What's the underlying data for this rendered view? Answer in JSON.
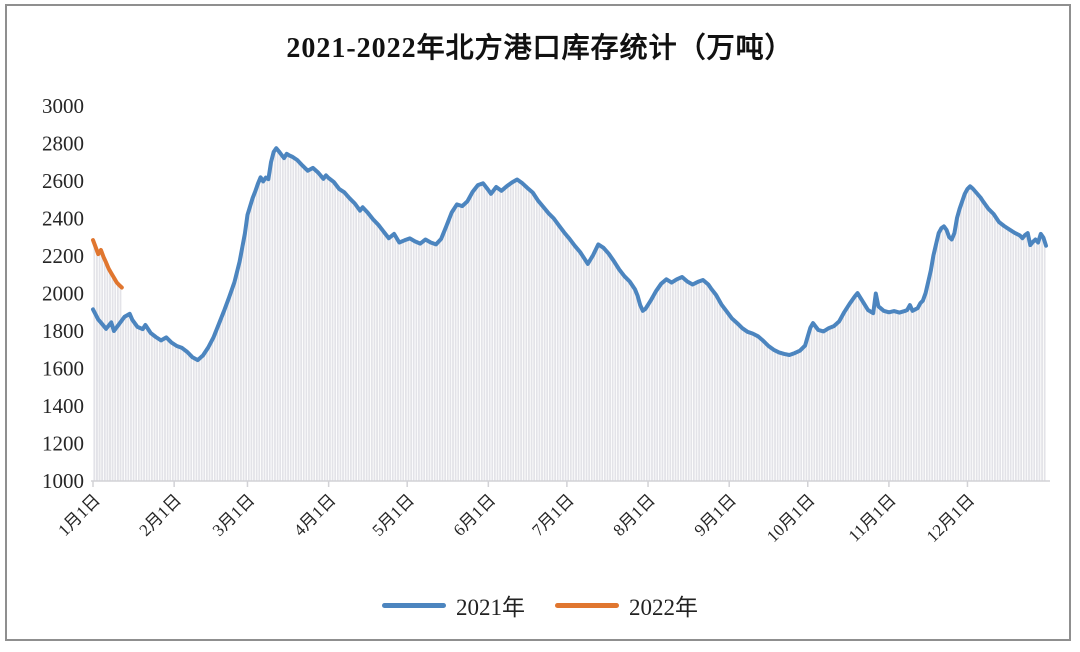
{
  "chart_data": {
    "type": "line",
    "title": "2021-2022年北方港口库存统计（万吨）",
    "units": "万吨",
    "xlabel": "",
    "ylabel": "",
    "ylim": [
      1000,
      3000
    ],
    "grid": false,
    "drop_lines": true,
    "legend_position": "bottom",
    "y_ticks": [
      3000,
      2800,
      2600,
      2400,
      2200,
      2000,
      1800,
      1600,
      1400,
      1200,
      1000
    ],
    "x_ticks": [
      {
        "day": 1,
        "label": "1月1日"
      },
      {
        "day": 32,
        "label": "2月1日"
      },
      {
        "day": 60,
        "label": "3月1日"
      },
      {
        "day": 91,
        "label": "4月1日"
      },
      {
        "day": 121,
        "label": "5月1日"
      },
      {
        "day": 152,
        "label": "6月1日"
      },
      {
        "day": 182,
        "label": "7月1日"
      },
      {
        "day": 213,
        "label": "8月1日"
      },
      {
        "day": 244,
        "label": "9月1日"
      },
      {
        "day": 274,
        "label": "10月1日"
      },
      {
        "day": 305,
        "label": "11月1日"
      },
      {
        "day": 335,
        "label": "12月1日"
      }
    ],
    "legend": [
      {
        "label": "2021年",
        "color": "#4c85bf"
      },
      {
        "label": "2022年",
        "color": "#e0762f"
      }
    ],
    "series": [
      {
        "name": "2021年",
        "color": "#4c85bf",
        "points": [
          [
            1,
            1915
          ],
          [
            3,
            1862
          ],
          [
            4,
            1845
          ],
          [
            6,
            1812
          ],
          [
            8,
            1846
          ],
          [
            9,
            1800
          ],
          [
            11,
            1838
          ],
          [
            13,
            1875
          ],
          [
            15,
            1892
          ],
          [
            16,
            1860
          ],
          [
            18,
            1822
          ],
          [
            20,
            1810
          ],
          [
            21,
            1832
          ],
          [
            23,
            1790
          ],
          [
            25,
            1768
          ],
          [
            27,
            1750
          ],
          [
            29,
            1766
          ],
          [
            31,
            1738
          ],
          [
            33,
            1720
          ],
          [
            35,
            1710
          ],
          [
            37,
            1688
          ],
          [
            39,
            1660
          ],
          [
            41,
            1645
          ],
          [
            43,
            1670
          ],
          [
            45,
            1712
          ],
          [
            47,
            1765
          ],
          [
            49,
            1835
          ],
          [
            51,
            1905
          ],
          [
            53,
            1980
          ],
          [
            55,
            2060
          ],
          [
            57,
            2170
          ],
          [
            59,
            2320
          ],
          [
            60,
            2420
          ],
          [
            61,
            2465
          ],
          [
            62,
            2510
          ],
          [
            63,
            2545
          ],
          [
            64,
            2585
          ],
          [
            65,
            2620
          ],
          [
            66,
            2598
          ],
          [
            67,
            2618
          ],
          [
            68,
            2610
          ],
          [
            69,
            2700
          ],
          [
            70,
            2755
          ],
          [
            71,
            2775
          ],
          [
            72,
            2758
          ],
          [
            73,
            2740
          ],
          [
            74,
            2722
          ],
          [
            75,
            2745
          ],
          [
            76,
            2736
          ],
          [
            77,
            2730
          ],
          [
            79,
            2712
          ],
          [
            81,
            2682
          ],
          [
            83,
            2655
          ],
          [
            85,
            2670
          ],
          [
            87,
            2645
          ],
          [
            89,
            2612
          ],
          [
            90,
            2630
          ],
          [
            91,
            2616
          ],
          [
            93,
            2594
          ],
          [
            95,
            2558
          ],
          [
            97,
            2540
          ],
          [
            99,
            2508
          ],
          [
            101,
            2480
          ],
          [
            103,
            2442
          ],
          [
            104,
            2460
          ],
          [
            106,
            2430
          ],
          [
            108,
            2395
          ],
          [
            110,
            2366
          ],
          [
            112,
            2330
          ],
          [
            114,
            2295
          ],
          [
            116,
            2318
          ],
          [
            118,
            2272
          ],
          [
            120,
            2284
          ],
          [
            122,
            2294
          ],
          [
            124,
            2278
          ],
          [
            126,
            2266
          ],
          [
            128,
            2288
          ],
          [
            130,
            2272
          ],
          [
            132,
            2262
          ],
          [
            134,
            2292
          ],
          [
            136,
            2360
          ],
          [
            138,
            2432
          ],
          [
            140,
            2475
          ],
          [
            142,
            2466
          ],
          [
            144,
            2492
          ],
          [
            146,
            2542
          ],
          [
            148,
            2578
          ],
          [
            150,
            2588
          ],
          [
            152,
            2552
          ],
          [
            153,
            2532
          ],
          [
            155,
            2568
          ],
          [
            157,
            2548
          ],
          [
            159,
            2572
          ],
          [
            161,
            2592
          ],
          [
            163,
            2608
          ],
          [
            165,
            2588
          ],
          [
            167,
            2562
          ],
          [
            169,
            2538
          ],
          [
            171,
            2495
          ],
          [
            173,
            2462
          ],
          [
            175,
            2428
          ],
          [
            177,
            2400
          ],
          [
            179,
            2362
          ],
          [
            181,
            2325
          ],
          [
            183,
            2292
          ],
          [
            185,
            2255
          ],
          [
            187,
            2222
          ],
          [
            189,
            2180
          ],
          [
            190,
            2158
          ],
          [
            192,
            2205
          ],
          [
            194,
            2262
          ],
          [
            196,
            2244
          ],
          [
            198,
            2212
          ],
          [
            200,
            2172
          ],
          [
            202,
            2128
          ],
          [
            204,
            2092
          ],
          [
            206,
            2064
          ],
          [
            208,
            2022
          ],
          [
            209,
            1988
          ],
          [
            210,
            1938
          ],
          [
            211,
            1908
          ],
          [
            212,
            1918
          ],
          [
            214,
            1962
          ],
          [
            216,
            2012
          ],
          [
            218,
            2052
          ],
          [
            220,
            2076
          ],
          [
            222,
            2058
          ],
          [
            224,
            2076
          ],
          [
            226,
            2088
          ],
          [
            228,
            2064
          ],
          [
            230,
            2048
          ],
          [
            232,
            2062
          ],
          [
            234,
            2072
          ],
          [
            236,
            2048
          ],
          [
            237,
            2028
          ],
          [
            239,
            1992
          ],
          [
            241,
            1942
          ],
          [
            243,
            1905
          ],
          [
            245,
            1868
          ],
          [
            247,
            1842
          ],
          [
            249,
            1815
          ],
          [
            251,
            1796
          ],
          [
            253,
            1786
          ],
          [
            255,
            1772
          ],
          [
            257,
            1748
          ],
          [
            259,
            1720
          ],
          [
            261,
            1700
          ],
          [
            263,
            1686
          ],
          [
            265,
            1678
          ],
          [
            267,
            1672
          ],
          [
            269,
            1682
          ],
          [
            271,
            1695
          ],
          [
            273,
            1722
          ],
          [
            274,
            1772
          ],
          [
            275,
            1818
          ],
          [
            276,
            1842
          ],
          [
            278,
            1806
          ],
          [
            280,
            1798
          ],
          [
            282,
            1815
          ],
          [
            284,
            1826
          ],
          [
            286,
            1852
          ],
          [
            288,
            1902
          ],
          [
            290,
            1945
          ],
          [
            292,
            1985
          ],
          [
            293,
            2002
          ],
          [
            295,
            1958
          ],
          [
            297,
            1912
          ],
          [
            299,
            1895
          ],
          [
            300,
            2000
          ],
          [
            301,
            1932
          ],
          [
            303,
            1908
          ],
          [
            305,
            1900
          ],
          [
            307,
            1906
          ],
          [
            309,
            1898
          ],
          [
            311,
            1906
          ],
          [
            312,
            1912
          ],
          [
            313,
            1938
          ],
          [
            314,
            1908
          ],
          [
            316,
            1922
          ],
          [
            317,
            1948
          ],
          [
            318,
            1962
          ],
          [
            319,
            2002
          ],
          [
            320,
            2062
          ],
          [
            321,
            2122
          ],
          [
            322,
            2202
          ],
          [
            323,
            2262
          ],
          [
            324,
            2322
          ],
          [
            325,
            2348
          ],
          [
            326,
            2358
          ],
          [
            327,
            2340
          ],
          [
            328,
            2302
          ],
          [
            329,
            2288
          ],
          [
            330,
            2322
          ],
          [
            331,
            2402
          ],
          [
            332,
            2452
          ],
          [
            333,
            2492
          ],
          [
            334,
            2532
          ],
          [
            335,
            2558
          ],
          [
            336,
            2572
          ],
          [
            337,
            2560
          ],
          [
            338,
            2544
          ],
          [
            339,
            2528
          ],
          [
            340,
            2512
          ],
          [
            341,
            2490
          ],
          [
            343,
            2452
          ],
          [
            345,
            2424
          ],
          [
            347,
            2382
          ],
          [
            349,
            2360
          ],
          [
            351,
            2342
          ],
          [
            353,
            2324
          ],
          [
            355,
            2310
          ],
          [
            356,
            2295
          ],
          [
            357,
            2312
          ],
          [
            358,
            2322
          ],
          [
            359,
            2258
          ],
          [
            360,
            2275
          ],
          [
            361,
            2288
          ],
          [
            362,
            2272
          ],
          [
            363,
            2318
          ],
          [
            364,
            2298
          ],
          [
            365,
            2255
          ]
        ]
      },
      {
        "name": "2022年",
        "color": "#e0762f",
        "points": [
          [
            1,
            2285
          ],
          [
            2,
            2248
          ],
          [
            3,
            2210
          ],
          [
            4,
            2232
          ],
          [
            5,
            2195
          ],
          [
            6,
            2165
          ],
          [
            7,
            2132
          ],
          [
            8,
            2108
          ],
          [
            9,
            2085
          ],
          [
            10,
            2060
          ],
          [
            11,
            2045
          ],
          [
            12,
            2032
          ]
        ]
      }
    ],
    "style": {
      "stripe_color": "#e3e3e8",
      "axis_color": "#d2d2d6",
      "tick_label_color": "#262626",
      "title_color": "#111111"
    }
  }
}
